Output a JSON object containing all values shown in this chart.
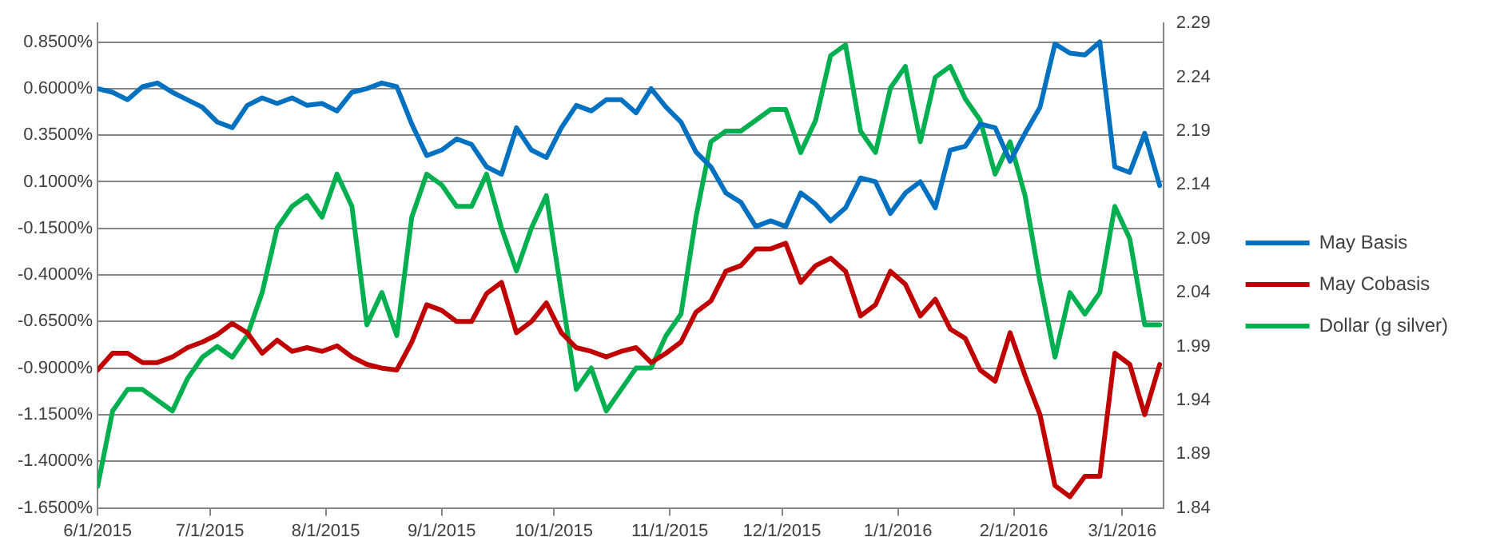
{
  "chart_data": {
    "type": "line",
    "x": [
      "2015-06-01",
      "2015-06-05",
      "2015-06-09",
      "2015-06-13",
      "2015-06-17",
      "2015-06-21",
      "2015-06-25",
      "2015-06-29",
      "2015-07-03",
      "2015-07-07",
      "2015-07-11",
      "2015-07-15",
      "2015-07-19",
      "2015-07-23",
      "2015-07-27",
      "2015-07-31",
      "2015-08-04",
      "2015-08-08",
      "2015-08-12",
      "2015-08-16",
      "2015-08-20",
      "2015-08-24",
      "2015-08-28",
      "2015-09-01",
      "2015-09-05",
      "2015-09-09",
      "2015-09-13",
      "2015-09-17",
      "2015-09-21",
      "2015-09-25",
      "2015-09-29",
      "2015-10-03",
      "2015-10-07",
      "2015-10-11",
      "2015-10-15",
      "2015-10-19",
      "2015-10-23",
      "2015-10-27",
      "2015-10-31",
      "2015-11-04",
      "2015-11-08",
      "2015-11-12",
      "2015-11-16",
      "2015-11-20",
      "2015-11-24",
      "2015-11-28",
      "2015-12-02",
      "2015-12-06",
      "2015-12-10",
      "2015-12-14",
      "2015-12-18",
      "2015-12-22",
      "2015-12-26",
      "2015-12-30",
      "2016-01-03",
      "2016-01-07",
      "2016-01-11",
      "2016-01-15",
      "2016-01-19",
      "2016-01-23",
      "2016-01-27",
      "2016-01-31",
      "2016-02-04",
      "2016-02-08",
      "2016-02-12",
      "2016-02-16",
      "2016-02-20",
      "2016-02-24",
      "2016-02-28",
      "2016-03-03",
      "2016-03-07",
      "2016-03-11"
    ],
    "series": [
      {
        "name": "May Basis",
        "color": "#0070c0",
        "values": [
          0.6,
          0.58,
          0.54,
          0.61,
          0.63,
          0.58,
          0.54,
          0.5,
          0.42,
          0.39,
          0.51,
          0.55,
          0.52,
          0.55,
          0.51,
          0.52,
          0.48,
          0.58,
          0.6,
          0.63,
          0.61,
          0.41,
          0.24,
          0.27,
          0.33,
          0.3,
          0.18,
          0.14,
          0.39,
          0.27,
          0.23,
          0.39,
          0.51,
          0.48,
          0.54,
          0.54,
          0.47,
          0.6,
          0.5,
          0.42,
          0.26,
          0.18,
          0.04,
          -0.01,
          -0.14,
          -0.11,
          -0.14,
          0.04,
          -0.02,
          -0.11,
          -0.04,
          0.12,
          0.1,
          -0.07,
          0.04,
          0.1,
          -0.04,
          0.27,
          0.29,
          0.41,
          0.39,
          0.21,
          0.36,
          0.5,
          0.84,
          0.79,
          0.78,
          0.85,
          0.18,
          0.15,
          0.36,
          0.08
        ]
      },
      {
        "name": "May Cobasis",
        "color": "#c00000",
        "values": [
          -0.91,
          -0.82,
          -0.82,
          -0.87,
          -0.87,
          -0.84,
          -0.79,
          -0.76,
          -0.72,
          -0.66,
          -0.71,
          -0.82,
          -0.75,
          -0.81,
          -0.79,
          -0.81,
          -0.78,
          -0.84,
          -0.88,
          -0.9,
          -0.91,
          -0.76,
          -0.56,
          -0.59,
          -0.65,
          -0.65,
          -0.5,
          -0.44,
          -0.71,
          -0.65,
          -0.55,
          -0.71,
          -0.79,
          -0.81,
          -0.84,
          -0.81,
          -0.79,
          -0.87,
          -0.82,
          -0.76,
          -0.6,
          -0.54,
          -0.38,
          -0.35,
          -0.26,
          -0.26,
          -0.23,
          -0.44,
          -0.35,
          -0.31,
          -0.38,
          -0.62,
          -0.56,
          -0.38,
          -0.45,
          -0.62,
          -0.53,
          -0.69,
          -0.74,
          -0.91,
          -0.97,
          -0.71,
          -0.94,
          -1.15,
          -1.53,
          -1.59,
          -1.48,
          -1.48,
          -0.82,
          -0.88,
          -1.15,
          -0.88
        ]
      },
      {
        "name": "Dollar (g silver)",
        "color": "#00b050",
        "axis": "y2",
        "values": [
          1.86,
          1.93,
          1.95,
          1.95,
          1.94,
          1.93,
          1.96,
          1.98,
          1.99,
          1.98,
          2.0,
          2.04,
          2.1,
          2.12,
          2.13,
          2.11,
          2.15,
          2.12,
          2.01,
          2.04,
          2.0,
          2.11,
          2.15,
          2.14,
          2.12,
          2.12,
          2.15,
          2.1,
          2.06,
          2.1,
          2.13,
          2.04,
          1.95,
          1.97,
          1.93,
          1.95,
          1.97,
          1.97,
          2.0,
          2.02,
          2.11,
          2.18,
          2.19,
          2.19,
          2.2,
          2.21,
          2.21,
          2.17,
          2.2,
          2.26,
          2.27,
          2.19,
          2.17,
          2.23,
          2.25,
          2.18,
          2.24,
          2.25,
          2.22,
          2.2,
          2.15,
          2.18,
          2.13,
          2.05,
          1.98,
          2.04,
          2.02,
          2.04,
          2.12,
          2.09,
          2.01,
          2.01
        ]
      }
    ],
    "xlim": [
      "2015-06-01",
      "2016-03-12"
    ],
    "xticks": [
      {
        "value": "2015-06-01",
        "label": "6/1/2015"
      },
      {
        "value": "2015-07-01",
        "label": "7/1/2015"
      },
      {
        "value": "2015-08-01",
        "label": "8/1/2015"
      },
      {
        "value": "2015-09-01",
        "label": "9/1/2015"
      },
      {
        "value": "2015-10-01",
        "label": "10/1/2015"
      },
      {
        "value": "2015-11-01",
        "label": "11/1/2015"
      },
      {
        "value": "2015-12-01",
        "label": "12/1/2015"
      },
      {
        "value": "2016-01-01",
        "label": "1/1/2016"
      },
      {
        "value": "2016-02-01",
        "label": "2/1/2016"
      },
      {
        "value": "2016-03-01",
        "label": "3/1/2016"
      }
    ],
    "ylim": [
      -1.65,
      0.95
    ],
    "yticks": [
      {
        "value": -1.65,
        "label": "-1.6500%"
      },
      {
        "value": -1.4,
        "label": "-1.4000%"
      },
      {
        "value": -1.15,
        "label": "-1.1500%"
      },
      {
        "value": -0.9,
        "label": "-0.9000%"
      },
      {
        "value": -0.65,
        "label": "-0.6500%"
      },
      {
        "value": -0.4,
        "label": "-0.4000%"
      },
      {
        "value": -0.15,
        "label": "-0.1500%"
      },
      {
        "value": 0.1,
        "label": "0.1000%"
      },
      {
        "value": 0.35,
        "label": "0.3500%"
      },
      {
        "value": 0.6,
        "label": "0.6000%"
      },
      {
        "value": 0.85,
        "label": "0.8500%"
      }
    ],
    "y2lim": [
      1.84,
      2.29
    ],
    "y2ticks": [
      1.84,
      1.89,
      1.94,
      1.99,
      2.04,
      2.09,
      2.14,
      2.19,
      2.24,
      2.29
    ],
    "grid": "y",
    "legend": "right",
    "marker": "none",
    "line_style": "solid"
  }
}
